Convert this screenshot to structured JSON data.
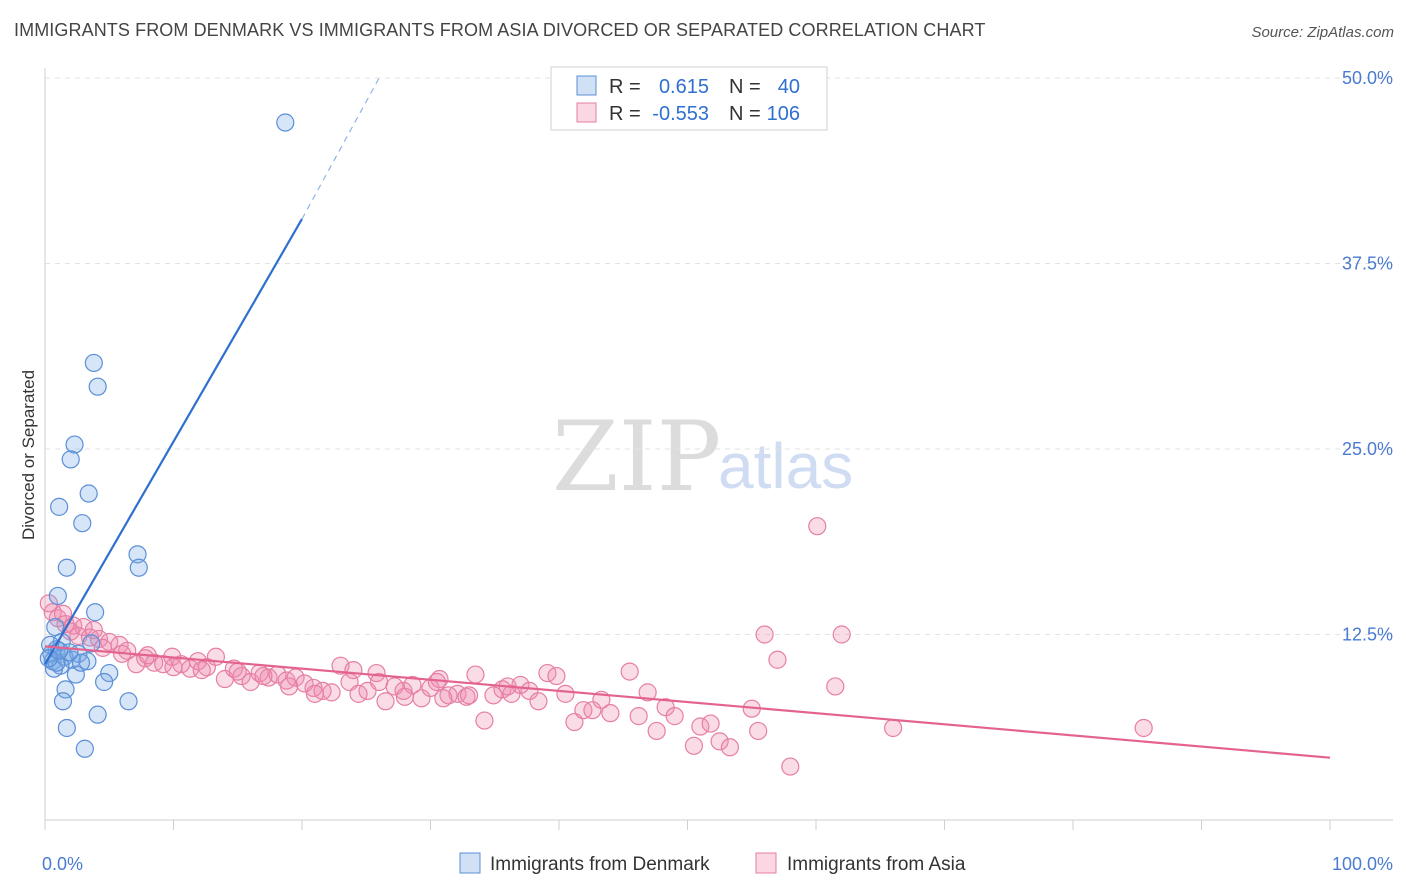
{
  "title": "IMMIGRANTS FROM DENMARK VS IMMIGRANTS FROM ASIA DIVORCED OR SEPARATED CORRELATION CHART",
  "source": "Source: ZipAtlas.com",
  "watermark": {
    "part1": "ZIP",
    "part2": "atlas"
  },
  "colors": {
    "blue_fill": "rgba(120,170,230,0.30)",
    "blue_stroke": "#5b8fd6",
    "blue_line": "#2f6fd0",
    "pink_fill": "rgba(240,140,175,0.30)",
    "pink_stroke": "#e67fa3",
    "pink_line": "#e4638e",
    "tick_text": "#4a7bd0"
  },
  "legend": {
    "r_label": "R =",
    "n_label": "N =",
    "denmark": {
      "r": "0.615",
      "n": "40"
    },
    "asia": {
      "r": "-0.553",
      "n": "106"
    }
  },
  "chart_data": {
    "type": "scatter",
    "title": "IMMIGRANTS FROM DENMARK VS IMMIGRANTS FROM ASIA DIVORCED OR SEPARATED CORRELATION CHART",
    "xlabel": "",
    "ylabel": "Divorced or Separated",
    "xlim": [
      0,
      100
    ],
    "ylim": [
      0,
      50
    ],
    "x_tick_labels": [
      "0.0%",
      "100.0%"
    ],
    "y_ticks": [
      12.5,
      25.0,
      37.5,
      50.0
    ],
    "y_tick_labels": [
      "12.5%",
      "25.0%",
      "37.5%",
      "50.0%"
    ],
    "grid": true,
    "series": [
      {
        "name": "Immigrants from Denmark",
        "color": "blue",
        "trend": {
          "x1": 0,
          "y1": 10.5,
          "x2": 20,
          "y2": 40.5,
          "dash_to_x": 26,
          "dash_to_y": 50
        },
        "points": [
          [
            18.7,
            47.0
          ],
          [
            3.8,
            30.8
          ],
          [
            4.1,
            29.2
          ],
          [
            2.3,
            25.3
          ],
          [
            2.0,
            24.3
          ],
          [
            3.4,
            22.0
          ],
          [
            1.1,
            21.1
          ],
          [
            2.9,
            20.0
          ],
          [
            7.2,
            17.9
          ],
          [
            1.7,
            17.0
          ],
          [
            7.3,
            17.0
          ],
          [
            1.0,
            15.1
          ],
          [
            3.9,
            14.0
          ],
          [
            0.8,
            13.0
          ],
          [
            1.3,
            12.0
          ],
          [
            0.5,
            11.2
          ],
          [
            0.6,
            10.7
          ],
          [
            0.9,
            11.5
          ],
          [
            1.5,
            11.0
          ],
          [
            2.1,
            10.8
          ],
          [
            2.6,
            11.2
          ],
          [
            1.2,
            10.4
          ],
          [
            0.7,
            10.2
          ],
          [
            3.3,
            10.7
          ],
          [
            2.4,
            9.8
          ],
          [
            5.0,
            9.9
          ],
          [
            1.6,
            8.8
          ],
          [
            4.6,
            9.3
          ],
          [
            1.4,
            8.0
          ],
          [
            6.5,
            8.0
          ],
          [
            4.1,
            7.1
          ],
          [
            1.7,
            6.2
          ],
          [
            3.1,
            4.8
          ],
          [
            0.4,
            11.8
          ],
          [
            0.9,
            10.6
          ],
          [
            2.8,
            10.6
          ],
          [
            3.6,
            11.9
          ],
          [
            1.9,
            11.3
          ],
          [
            0.3,
            10.9
          ],
          [
            1.1,
            11.4
          ]
        ]
      },
      {
        "name": "Immigrants from Asia",
        "color": "pink",
        "trend": {
          "x1": 0,
          "y1": 11.7,
          "x2": 100,
          "y2": 4.2
        },
        "points": [
          [
            0.6,
            14.0
          ],
          [
            1.0,
            13.6
          ],
          [
            1.6,
            13.2
          ],
          [
            2.2,
            13.1
          ],
          [
            3.0,
            13.0
          ],
          [
            2.6,
            12.4
          ],
          [
            3.5,
            12.3
          ],
          [
            4.2,
            12.2
          ],
          [
            5.0,
            12.0
          ],
          [
            5.8,
            11.8
          ],
          [
            2.0,
            12.7
          ],
          [
            4.5,
            11.6
          ],
          [
            6.4,
            11.4
          ],
          [
            7.1,
            10.5
          ],
          [
            7.8,
            10.9
          ],
          [
            8.5,
            10.6
          ],
          [
            9.2,
            10.5
          ],
          [
            9.9,
            11.0
          ],
          [
            10.6,
            10.5
          ],
          [
            11.3,
            10.2
          ],
          [
            11.9,
            10.7
          ],
          [
            12.6,
            10.3
          ],
          [
            13.3,
            11.0
          ],
          [
            14.0,
            9.5
          ],
          [
            14.7,
            10.2
          ],
          [
            15.3,
            9.7
          ],
          [
            16.0,
            9.3
          ],
          [
            16.7,
            9.9
          ],
          [
            17.4,
            9.6
          ],
          [
            18.1,
            9.8
          ],
          [
            18.8,
            9.4
          ],
          [
            19.5,
            9.6
          ],
          [
            20.2,
            9.2
          ],
          [
            20.9,
            8.9
          ],
          [
            21.6,
            8.7
          ],
          [
            22.3,
            8.6
          ],
          [
            23.0,
            10.4
          ],
          [
            23.7,
            9.3
          ],
          [
            24.4,
            8.5
          ],
          [
            25.1,
            8.7
          ],
          [
            25.8,
            9.9
          ],
          [
            26.5,
            8.0
          ],
          [
            27.2,
            9.0
          ],
          [
            27.9,
            8.7
          ],
          [
            28.6,
            9.1
          ],
          [
            29.3,
            8.2
          ],
          [
            30.0,
            8.9
          ],
          [
            30.7,
            9.5
          ],
          [
            31.4,
            8.4
          ],
          [
            32.1,
            8.5
          ],
          [
            32.8,
            8.3
          ],
          [
            33.5,
            9.8
          ],
          [
            34.2,
            6.7
          ],
          [
            34.9,
            8.4
          ],
          [
            35.6,
            8.8
          ],
          [
            36.3,
            8.5
          ],
          [
            37.0,
            9.1
          ],
          [
            37.7,
            8.7
          ],
          [
            38.4,
            8.0
          ],
          [
            39.1,
            9.9
          ],
          [
            39.8,
            9.7
          ],
          [
            40.5,
            8.5
          ],
          [
            41.2,
            6.6
          ],
          [
            41.9,
            7.4
          ],
          [
            42.6,
            7.4
          ],
          [
            43.3,
            8.1
          ],
          [
            44.0,
            7.2
          ],
          [
            45.5,
            10.0
          ],
          [
            46.2,
            7.0
          ],
          [
            46.9,
            8.6
          ],
          [
            47.6,
            6.0
          ],
          [
            48.3,
            7.6
          ],
          [
            49.0,
            7.0
          ],
          [
            50.5,
            5.0
          ],
          [
            51.0,
            6.3
          ],
          [
            51.8,
            6.5
          ],
          [
            52.5,
            5.3
          ],
          [
            53.3,
            4.9
          ],
          [
            55.0,
            7.5
          ],
          [
            55.5,
            6.0
          ],
          [
            56.0,
            12.5
          ],
          [
            57.0,
            10.8
          ],
          [
            58.0,
            3.6
          ],
          [
            60.1,
            19.8
          ],
          [
            61.5,
            9.0
          ],
          [
            62.0,
            12.5
          ],
          [
            66.0,
            6.2
          ],
          [
            85.5,
            6.2
          ],
          [
            0.3,
            14.6
          ],
          [
            1.4,
            13.9
          ],
          [
            3.8,
            12.8
          ],
          [
            6.0,
            11.2
          ],
          [
            8.0,
            11.1
          ],
          [
            10.0,
            10.3
          ],
          [
            12.2,
            10.1
          ],
          [
            15.0,
            10.0
          ],
          [
            17.0,
            9.7
          ],
          [
            19.0,
            9.0
          ],
          [
            21.0,
            8.5
          ],
          [
            24.0,
            10.1
          ],
          [
            26.0,
            9.3
          ],
          [
            28.0,
            8.3
          ],
          [
            30.5,
            9.3
          ],
          [
            31.0,
            8.2
          ],
          [
            33.0,
            8.4
          ],
          [
            36.0,
            9.0
          ]
        ]
      }
    ]
  }
}
